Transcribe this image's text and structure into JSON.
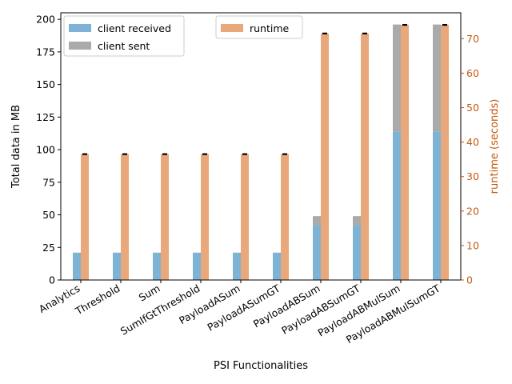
{
  "chart_data": {
    "type": "bar",
    "xlabel": "PSI Functionalities",
    "ylabel_left": "Total data in MB",
    "ylabel_right": "runtime (seconds)",
    "ylim_left": [
      0,
      205
    ],
    "ylim_right": [
      0,
      77.5
    ],
    "yticks_left": [
      0,
      25,
      50,
      75,
      100,
      125,
      150,
      175,
      200
    ],
    "yticks_right": [
      0,
      10,
      20,
      30,
      40,
      50,
      60,
      70
    ],
    "categories": [
      "Analytics",
      "Threshold",
      "Sum",
      "SumIfGtThreshold",
      "PayloadASum",
      "PayloadASumGT",
      "PayloadABSum",
      "PayloadABSumGT",
      "PayloadABMulSum",
      "PayloadABMulSumGT"
    ],
    "series": [
      {
        "name": "client received",
        "axis": "left",
        "color": "#7fb3d5",
        "values": [
          21,
          21,
          21,
          21,
          21,
          21,
          42,
          42,
          114,
          114
        ]
      },
      {
        "name": "client sent",
        "axis": "left",
        "color": "#aaaaaa",
        "values": [
          0,
          0,
          0,
          0,
          0,
          0,
          7,
          7,
          82,
          82
        ],
        "stacked_on": "client received"
      },
      {
        "name": "runtime",
        "axis": "right",
        "color": "#e8a87c",
        "values": [
          36.5,
          36.5,
          36.5,
          36.5,
          36.5,
          36.5,
          71.5,
          71.5,
          74,
          74
        ]
      }
    ],
    "legend_left": [
      "client received",
      "client sent"
    ],
    "legend_right": [
      "runtime"
    ],
    "legend_placement": "top-left and top-center",
    "grid": false,
    "right_axis_color": "#c55a11",
    "error_bar_color": "#000000"
  }
}
